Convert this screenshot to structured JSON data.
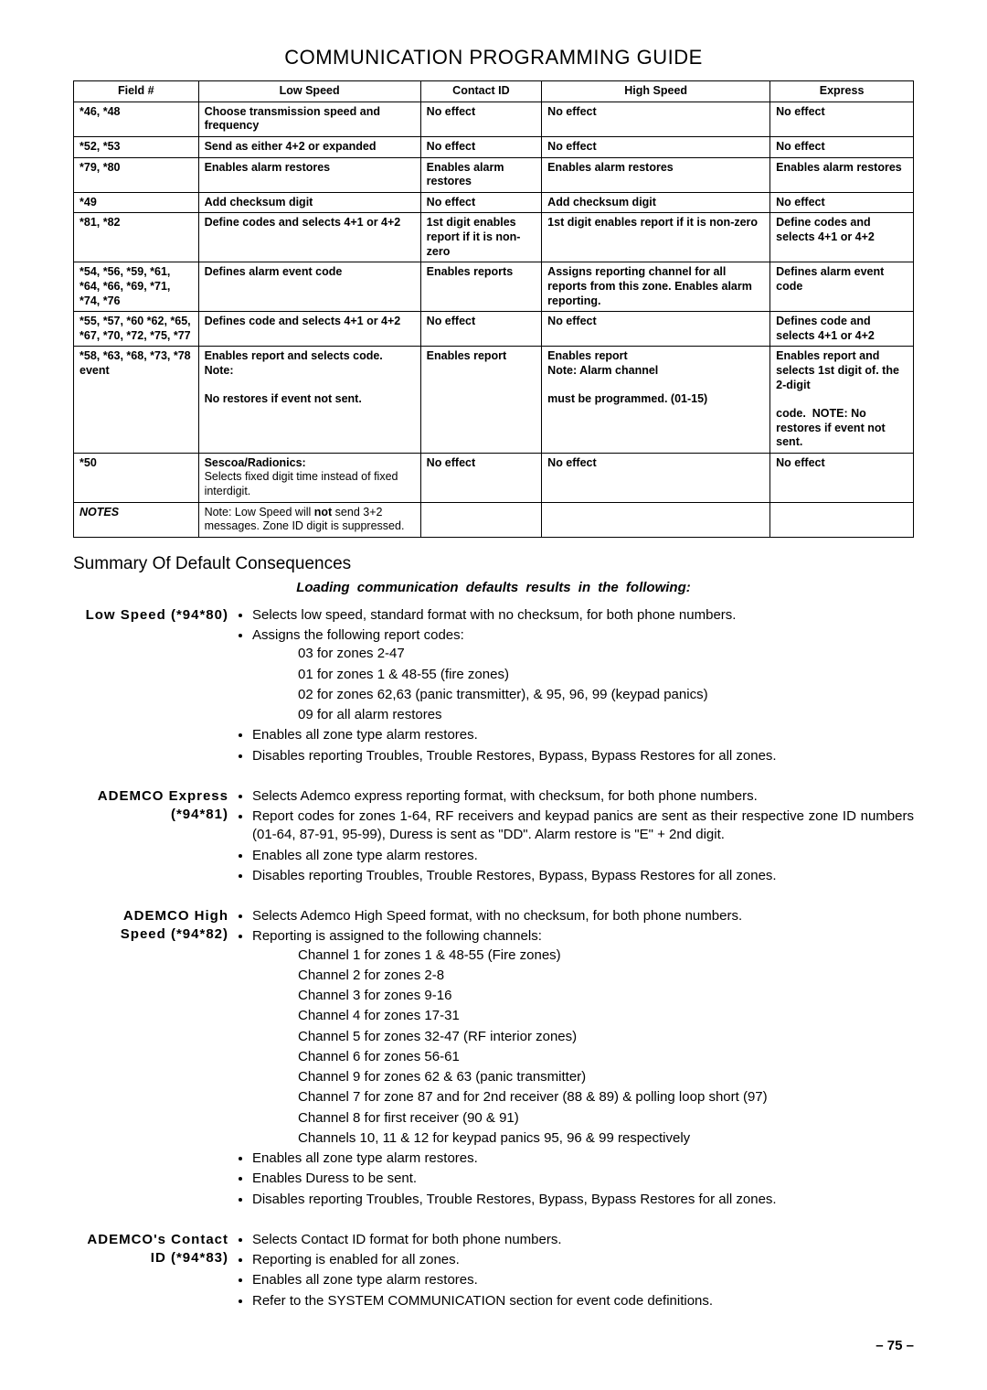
{
  "title": "COMMUNICATION PROGRAMMING GUIDE",
  "table": {
    "headers": [
      "Field #",
      "Low Speed",
      "Contact ID",
      "High Speed",
      "Express"
    ],
    "rows": [
      {
        "field": "*46, *48",
        "cells": [
          "Choose transmission speed and frequency",
          "No effect",
          "No effect",
          "No effect"
        ],
        "bold": [
          true,
          true,
          true,
          true
        ]
      },
      {
        "field": "*52, *53",
        "cells": [
          "Send as either 4+2 or expanded",
          "No effect",
          "No effect",
          "No effect"
        ],
        "bold": [
          true,
          true,
          true,
          true
        ]
      },
      {
        "field": "*79, *80",
        "cells": [
          "Enables alarm restores",
          "Enables alarm restores",
          "Enables alarm restores",
          "Enables alarm restores"
        ],
        "bold": [
          true,
          true,
          true,
          true
        ]
      },
      {
        "field": "*49",
        "cells": [
          "Add checksum digit",
          "No effect",
          "Add checksum digit",
          "No effect"
        ],
        "bold": [
          true,
          true,
          true,
          true
        ]
      },
      {
        "field": "*81, *82",
        "cells": [
          "Define codes and selects 4+1 or 4+2",
          "1st digit enables report if it is non-zero",
          "1st digit enables report if it is non-zero",
          "Define codes and selects 4+1 or 4+2"
        ],
        "bold": [
          true,
          true,
          true,
          true
        ]
      },
      {
        "field": "*54, *56, *59, *61, *64, *66, *69, *71, *74, *76",
        "cells": [
          "Defines alarm event code",
          "Enables reports",
          "Assigns reporting channel for all reports from this zone. Enables alarm reporting.",
          "Defines alarm event code"
        ],
        "bold": [
          true,
          true,
          true,
          true
        ]
      },
      {
        "field": "*55, *57, *60 *62, *65, *67, *70, *72, *75, *77",
        "cells": [
          "Defines code and selects 4+1 or 4+2",
          "No effect",
          "No effect",
          "Defines code and selects 4+1 or 4+2"
        ],
        "bold": [
          true,
          true,
          true,
          true
        ]
      },
      {
        "field": "*58, *63, *68, *73, *78 event",
        "cells_html": [
          "<b>Enables report and selects code. Note:</b><br><br><b>No restores if event not sent.</b>",
          "<b>Enables report</b>",
          "<b>Enables report<br>Note: Alarm channel</b><br><br><b>must be programmed. (01-15)</b>",
          "<b>Enables report and selects 1st digit of. the 2-digit</b><br><br><b>code.&nbsp; NOTE: No restores if event not sent.</b>"
        ]
      },
      {
        "field": "*50",
        "cells_html": [
          "<b>Sescoa/Radionics:</b><br><span class='plain'>Selects fixed digit time instead of fixed interdigit.</span>",
          "<b>No effect</b>",
          "<b>No effect</b>",
          "<b>No effect</b>"
        ]
      },
      {
        "field_html": "<span class='notes-label'>NOTES</span>",
        "cells_html": [
          "Note:  Low Speed will <b>not</b> send 3+2 messages. Zone ID digit is suppressed.",
          "",
          "",
          ""
        ]
      }
    ]
  },
  "summary_heading": "Summary Of Default Consequences",
  "subhead": "Loading communication defaults results in the following:",
  "blocks": [
    {
      "label": "Low Speed (*94*80)",
      "bullets": [
        "Selects low speed, standard format with no checksum, for both phone numbers.",
        {
          "text": "Assigns the following report codes:",
          "sub": [
            "03 for zones 2-47",
            "01 for zones 1 &  48-55 (fire zones)",
            "02 for zones 62,63 (panic transmitter), & 95, 96, 99 (keypad panics)",
            "09 for all alarm restores"
          ]
        },
        "Enables all zone type alarm restores.",
        "Disables reporting Troubles, Trouble Restores, Bypass, Bypass Restores for all zones."
      ]
    },
    {
      "label": "ADEMCO Express (*94*81)",
      "bullets": [
        "Selects Ademco express reporting format, with checksum, for both phone numbers.",
        "Report codes for zones 1-64, RF receivers and keypad panics are sent as their respective zone ID numbers (01-64, 87-91, 95-99), Duress is sent as \"DD\".  Alarm restore is \"E\" + 2nd digit.",
        "Enables all zone type alarm restores.",
        "Disables reporting Troubles, Trouble Restores, Bypass, Bypass Restores for all zones."
      ]
    },
    {
      "label": "ADEMCO High Speed (*94*82)",
      "bullets": [
        "Selects Ademco High Speed format, with no checksum, for both phone numbers.",
        {
          "text": "Reporting is assigned to the following channels:",
          "sub": [
            "Channel 1 for zones 1 & 48-55 (Fire zones)",
            "Channel 2 for zones 2-8",
            "Channel 3 for zones 9-16",
            "Channel 4 for zones 17-31",
            "Channel 5 for zones 32-47 (RF interior zones)",
            "Channel 6 for zones 56-61",
            "Channel 9 for zones 62 & 63 (panic transmitter)",
            "Channel 7 for zone 87 and for 2nd receiver (88 & 89) & polling loop short (97)",
            "Channel 8 for first receiver (90 & 91)",
            "Channels 10, 11 & 12 for keypad panics 95, 96 & 99 respectively"
          ]
        },
        "Enables all zone type alarm restores.",
        "Enables Duress to be sent.",
        "Disables reporting Troubles, Trouble Restores, Bypass, Bypass Restores for all zones."
      ]
    },
    {
      "label": "ADEMCO's Contact ID (*94*83)",
      "bullets": [
        "Selects Contact ID format for both phone numbers.",
        "Reporting is enabled for all zones.",
        "Enables all zone type alarm restores.",
        "Refer to the SYSTEM COMMUNICATION section for event code definitions."
      ]
    }
  ],
  "page_number": "– 75 –"
}
